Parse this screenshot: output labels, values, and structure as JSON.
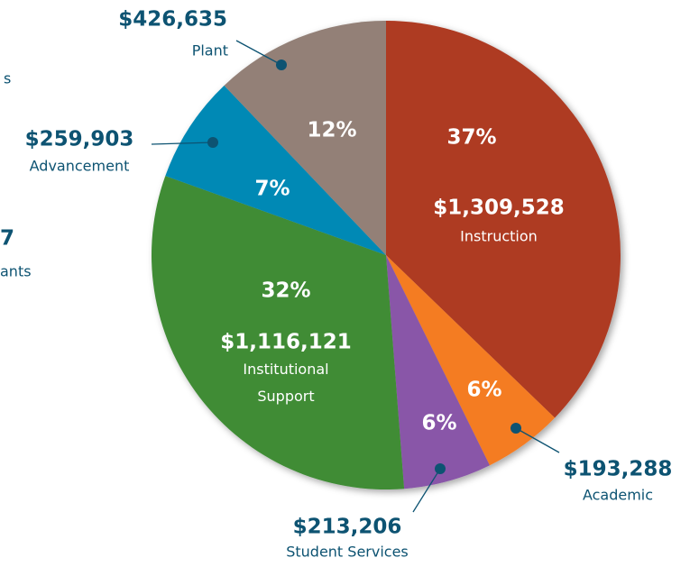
{
  "chart_data": {
    "type": "pie",
    "categories": [
      "Instruction",
      "Academic",
      "Student Services",
      "Institutional Support",
      "Advancement",
      "Plant"
    ],
    "values": [
      1309528,
      193288,
      213206,
      1116121,
      259903,
      426635
    ],
    "value_labels": [
      "$1,309,528",
      "$193,288",
      "$213,206",
      "$1,116,121",
      "$259,903",
      "$426,635"
    ],
    "shares": [
      37,
      6,
      6,
      32,
      7,
      12
    ],
    "share_labels": [
      "37%",
      "6%",
      "6%",
      "32%",
      "7%",
      "12%"
    ],
    "colors": [
      "#ae3b24",
      "#f47b20",
      "#8956a8",
      "#3f8c36",
      "#0089b5",
      "#938077"
    ],
    "fragments": [
      "s",
      "7",
      "ants"
    ]
  }
}
